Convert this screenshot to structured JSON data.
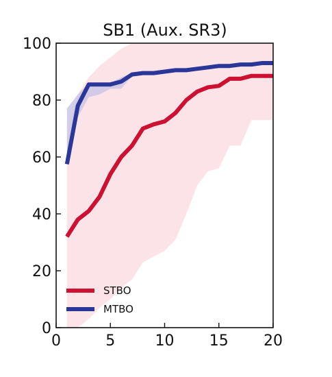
{
  "chart_data": {
    "type": "line",
    "title": "SB1 (Aux. SR3)",
    "xlabel": "",
    "ylabel": "",
    "xlim": [
      0,
      20
    ],
    "ylim": [
      0,
      100
    ],
    "x_ticks": [
      0,
      5,
      10,
      15,
      20
    ],
    "y_ticks": [
      0,
      20,
      40,
      60,
      80,
      100
    ],
    "grid": false,
    "legend_position": "bottom-left",
    "x": [
      1,
      2,
      3,
      4,
      5,
      6,
      7,
      8,
      9,
      10,
      11,
      12,
      13,
      14,
      15,
      16,
      17,
      18,
      19,
      20
    ],
    "series": [
      {
        "name": "STBO",
        "color": "#cc1133",
        "values": [
          32,
          38,
          41,
          46,
          54,
          60,
          64,
          70,
          71.5,
          72.5,
          75.5,
          80,
          83,
          84.5,
          85,
          87.5,
          87.5,
          88.5,
          88.5,
          88.5
        ],
        "band_upper": [
          68,
          82,
          88,
          92,
          95,
          98,
          100,
          100,
          100,
          100,
          100,
          100,
          100,
          100,
          100,
          100,
          100,
          100,
          100,
          100
        ],
        "band_lower": [
          0,
          0,
          3,
          7,
          10,
          14,
          17,
          23,
          25,
          27,
          31,
          40,
          50,
          55,
          56,
          64,
          64,
          73,
          73,
          73
        ],
        "band_color": "#fbd9e0"
      },
      {
        "name": "MTBO",
        "color": "#2a3799",
        "values": [
          57.5,
          78,
          85.5,
          85.5,
          85.5,
          86.5,
          89,
          89.5,
          89.5,
          90,
          90.5,
          90.5,
          91,
          91.5,
          92,
          92,
          92.5,
          92.5,
          93,
          93
        ],
        "band_upper": [
          77,
          82,
          86,
          86,
          86,
          88,
          89.5,
          90,
          90,
          90.5,
          91,
          91,
          91.5,
          92,
          92.5,
          92.5,
          93,
          93,
          93.5,
          93.5
        ],
        "band_lower": [
          57,
          74,
          81,
          82,
          84,
          84,
          88.5,
          89,
          89,
          89.5,
          90,
          90,
          90.5,
          91,
          91.5,
          91.5,
          92,
          92,
          92.5,
          92.5
        ],
        "band_color": "#c7c3e6"
      }
    ]
  }
}
